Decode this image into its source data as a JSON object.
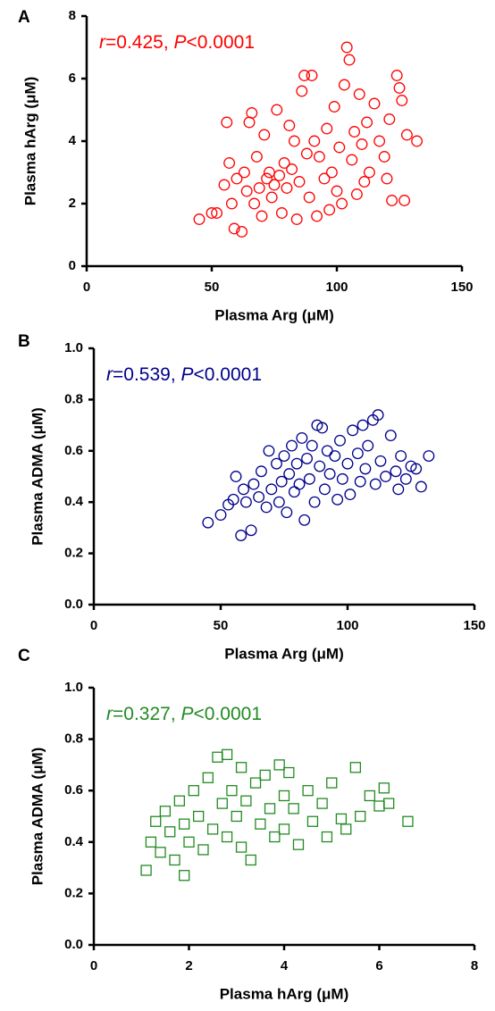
{
  "chart_data": [
    {
      "type": "scatter",
      "panel_label": "A",
      "annotation": [
        "r",
        "=0.425, ",
        "P",
        "<0.0001"
      ],
      "xlabel": "Plasma Arg (μM)",
      "ylabel": "Plasma hArg (μM)",
      "color": "#ff0000",
      "marker": "circle",
      "xlim": [
        0,
        150
      ],
      "ylim": [
        0,
        8
      ],
      "xticks": [
        0,
        50,
        100,
        150
      ],
      "yticks": [
        0,
        2,
        4,
        6,
        8
      ],
      "x": [
        45,
        50,
        52,
        55,
        56,
        57,
        58,
        59,
        60,
        62,
        63,
        64,
        65,
        66,
        67,
        68,
        69,
        70,
        71,
        72,
        73,
        74,
        75,
        76,
        77,
        78,
        79,
        80,
        81,
        82,
        83,
        84,
        85,
        86,
        87,
        88,
        89,
        90,
        91,
        92,
        93,
        95,
        96,
        97,
        98,
        99,
        100,
        101,
        102,
        103,
        104,
        105,
        106,
        107,
        108,
        109,
        110,
        111,
        112,
        113,
        115,
        117,
        119,
        120,
        121,
        122,
        124,
        125,
        126,
        127,
        128,
        132
      ],
      "y": [
        1.5,
        1.7,
        1.7,
        2.6,
        4.6,
        3.3,
        2.0,
        1.2,
        2.8,
        1.1,
        3.0,
        2.4,
        4.6,
        4.9,
        2.0,
        3.5,
        2.5,
        1.6,
        4.2,
        2.8,
        3.0,
        2.2,
        2.6,
        5.0,
        2.9,
        1.7,
        3.3,
        2.5,
        4.5,
        3.1,
        4.0,
        1.5,
        2.7,
        5.6,
        6.1,
        3.6,
        2.2,
        6.1,
        4.0,
        1.6,
        3.5,
        2.8,
        4.4,
        1.8,
        3.0,
        5.1,
        2.4,
        3.8,
        2.0,
        5.8,
        7.0,
        6.6,
        3.4,
        4.3,
        2.3,
        5.5,
        3.9,
        2.7,
        4.6,
        3.0,
        5.2,
        4.0,
        3.5,
        2.8,
        4.7,
        2.1,
        6.1,
        5.7,
        5.3,
        2.1,
        4.2,
        4.0
      ]
    },
    {
      "type": "scatter",
      "panel_label": "B",
      "annotation": [
        "r",
        "=0.539, ",
        "P",
        "<0.0001"
      ],
      "xlabel": "Plasma Arg (μM)",
      "ylabel": "Plasma ADMA (μM)",
      "color": "#00008b",
      "marker": "circle",
      "xlim": [
        0,
        150
      ],
      "ylim": [
        0,
        1
      ],
      "xticks": [
        0,
        50,
        100,
        150
      ],
      "yticks": [
        {
          "value": 0,
          "label": "0.0"
        },
        0.2,
        0.4,
        0.6,
        0.8,
        {
          "value": 1,
          "label": "1.0"
        }
      ],
      "x": [
        45,
        50,
        53,
        55,
        56,
        58,
        59,
        60,
        62,
        63,
        65,
        66,
        68,
        69,
        70,
        72,
        73,
        74,
        75,
        76,
        77,
        78,
        79,
        80,
        81,
        82,
        83,
        84,
        85,
        86,
        87,
        88,
        89,
        90,
        91,
        92,
        93,
        95,
        96,
        97,
        98,
        100,
        101,
        102,
        104,
        105,
        106,
        107,
        108,
        110,
        111,
        112,
        113,
        115,
        117,
        119,
        120,
        121,
        123,
        125,
        127,
        129,
        132
      ],
      "y": [
        0.32,
        0.35,
        0.39,
        0.41,
        0.5,
        0.27,
        0.45,
        0.4,
        0.29,
        0.47,
        0.42,
        0.52,
        0.38,
        0.6,
        0.45,
        0.55,
        0.4,
        0.48,
        0.58,
        0.36,
        0.51,
        0.62,
        0.44,
        0.55,
        0.47,
        0.65,
        0.33,
        0.57,
        0.49,
        0.62,
        0.4,
        0.7,
        0.54,
        0.69,
        0.45,
        0.6,
        0.51,
        0.58,
        0.41,
        0.64,
        0.49,
        0.55,
        0.43,
        0.68,
        0.59,
        0.48,
        0.7,
        0.53,
        0.62,
        0.72,
        0.47,
        0.74,
        0.56,
        0.5,
        0.66,
        0.52,
        0.45,
        0.58,
        0.49,
        0.54,
        0.53,
        0.46,
        0.58
      ]
    },
    {
      "type": "scatter",
      "panel_label": "C",
      "annotation": [
        "r",
        "=0.327, ",
        "P",
        "<0.0001"
      ],
      "xlabel": "Plasma hArg (μM)",
      "ylabel": "Plasma ADMA (μM)",
      "color": "#228b22",
      "marker": "square",
      "xlim": [
        0,
        8
      ],
      "ylim": [
        0,
        1
      ],
      "xticks": [
        0,
        2,
        4,
        6,
        8
      ],
      "yticks": [
        {
          "value": 0,
          "label": "0.0"
        },
        0.2,
        0.4,
        0.6,
        0.8,
        {
          "value": 1,
          "label": "1.0"
        }
      ],
      "x": [
        1.1,
        1.2,
        1.3,
        1.4,
        1.5,
        1.6,
        1.7,
        1.8,
        1.9,
        1.9,
        2.0,
        2.1,
        2.2,
        2.3,
        2.4,
        2.5,
        2.6,
        2.7,
        2.8,
        2.8,
        2.9,
        3.0,
        3.1,
        3.1,
        3.2,
        3.3,
        3.4,
        3.5,
        3.6,
        3.7,
        3.8,
        3.9,
        4.0,
        4.0,
        4.1,
        4.2,
        4.3,
        4.5,
        4.6,
        4.8,
        4.9,
        5.0,
        5.2,
        5.3,
        5.5,
        5.6,
        5.8,
        6.0,
        6.1,
        6.2,
        6.6
      ],
      "y": [
        0.29,
        0.4,
        0.48,
        0.36,
        0.52,
        0.44,
        0.33,
        0.56,
        0.27,
        0.47,
        0.4,
        0.6,
        0.5,
        0.37,
        0.65,
        0.45,
        0.73,
        0.55,
        0.74,
        0.42,
        0.6,
        0.5,
        0.38,
        0.69,
        0.56,
        0.33,
        0.63,
        0.47,
        0.66,
        0.53,
        0.42,
        0.7,
        0.58,
        0.45,
        0.67,
        0.53,
        0.39,
        0.6,
        0.48,
        0.55,
        0.42,
        0.63,
        0.49,
        0.45,
        0.69,
        0.5,
        0.58,
        0.54,
        0.61,
        0.55,
        0.48
      ]
    }
  ]
}
